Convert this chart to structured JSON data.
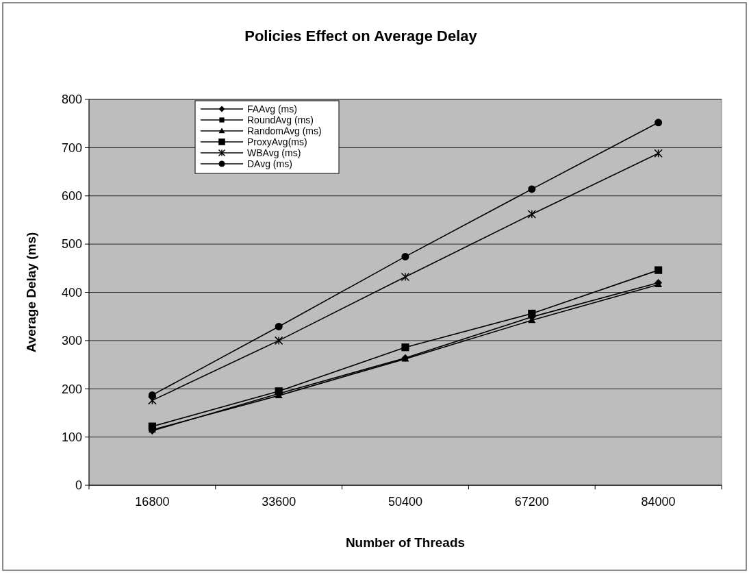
{
  "chart_data": {
    "type": "line",
    "title": "Policies Effect on Average Delay",
    "xlabel": "Number of Threads",
    "ylabel": "Average Delay (ms)",
    "categories": [
      "16800",
      "33600",
      "50400",
      "67200",
      "84000"
    ],
    "ylim": [
      0,
      800
    ],
    "yticks": [
      0,
      100,
      200,
      300,
      400,
      500,
      600,
      700,
      800
    ],
    "grid": "y",
    "legend": "top left",
    "series": [
      {
        "name": "FAAvg (ms)",
        "color": "#000000",
        "marker": "diamond",
        "values": [
          113,
          190,
          264,
          349,
          420
        ]
      },
      {
        "name": "RoundAvg (ms)",
        "color": "#000000",
        "marker": "square",
        "values": [
          null,
          null,
          null,
          null,
          null
        ]
      },
      {
        "name": "RandomAvg (ms)",
        "color": "#000000",
        "marker": "triangle",
        "values": [
          115,
          186,
          262,
          342,
          416
        ]
      },
      {
        "name": "ProxyAvg(ms)",
        "color": "#000000",
        "marker": "square",
        "values": [
          122,
          195,
          286,
          356,
          446
        ]
      },
      {
        "name": "WBAvg (ms)",
        "color": "#000000",
        "marker": "cross",
        "values": [
          176,
          300,
          432,
          562,
          688
        ]
      },
      {
        "name": "DAvg (ms)",
        "color": "#000000",
        "marker": "circle",
        "values": [
          187,
          329,
          474,
          614,
          752
        ]
      }
    ]
  }
}
